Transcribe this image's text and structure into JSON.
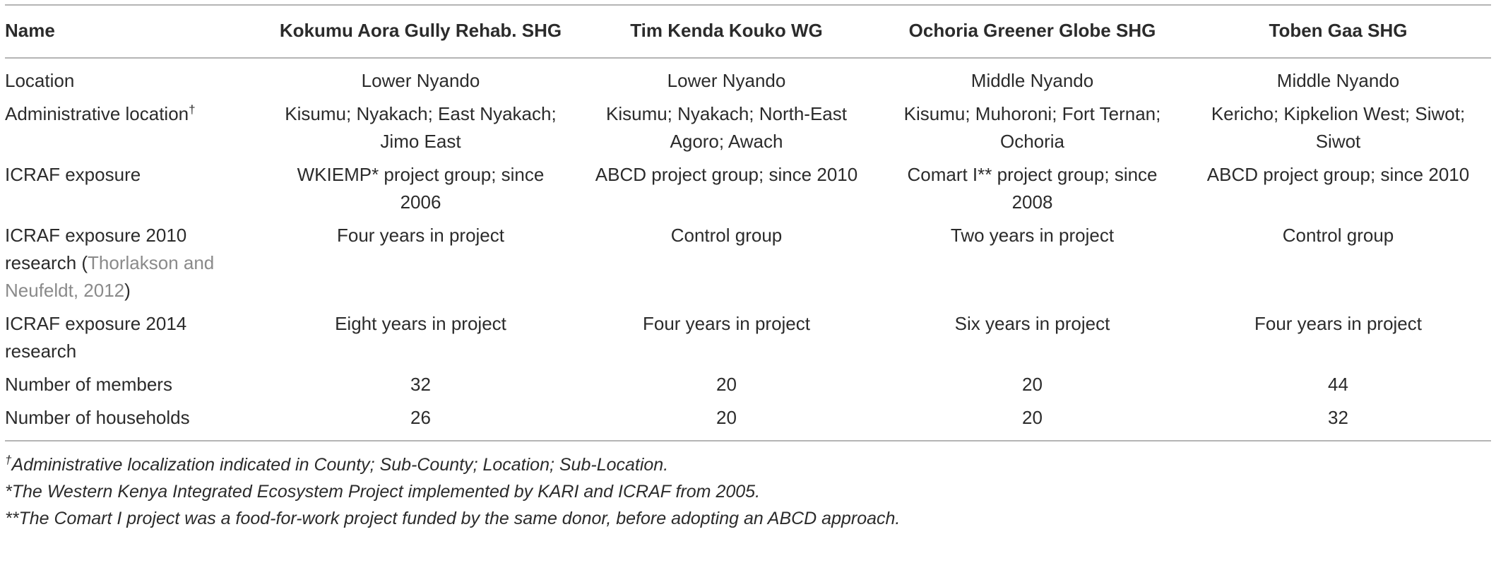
{
  "table": {
    "header": [
      "Name",
      "Kokumu Aora Gully Rehab. SHG",
      "Tim Kenda Kouko WG",
      "Ochoria Greener Globe SHG",
      "Toben Gaa SHG"
    ],
    "rows": [
      {
        "label": "Location",
        "cells": [
          "Lower Nyando",
          "Lower Nyando",
          "Middle Nyando",
          "Middle Nyando"
        ]
      },
      {
        "label": "Administrative location",
        "label_mark": "†",
        "cells": [
          "Kisumu; Nyakach; East Nyakach; Jimo East",
          "Kisumu; Nyakach; North-East Agoro; Awach",
          "Kisumu; Muhoroni; Fort Ternan; Ochoria",
          "Kericho; Kipkelion West; Siwot; Siwot"
        ]
      },
      {
        "label": "ICRAF exposure",
        "cells": [
          "WKIEMP* project group; since 2006",
          "ABCD project group; since 2010",
          "Comart I** project group; since 2008",
          "ABCD project group; since 2010"
        ]
      },
      {
        "label": "ICRAF exposure 2010 research (",
        "citation": "Thorlakson and Neufeldt, 2012",
        "label_end": ")",
        "cells": [
          "Four years in project",
          "Control group",
          "Two years in project",
          "Control group"
        ]
      },
      {
        "label": "ICRAF exposure 2014 research",
        "cells": [
          "Eight years in project",
          "Four years in project",
          "Six years in project",
          "Four years in project"
        ]
      },
      {
        "label": "Number of members",
        "cells": [
          32,
          20,
          20,
          44
        ]
      },
      {
        "label": "Number of households",
        "cells": [
          26,
          20,
          20,
          32
        ]
      }
    ],
    "footnotes": [
      {
        "mark": "†",
        "text": "Administrative localization indicated in County; Sub-County; Location; Sub-Location."
      },
      {
        "text": "*The Western Kenya Integrated Ecosystem Project implemented by KARI and ICRAF from 2005."
      },
      {
        "text": "**The Comart I project was a food-for-work project funded by the same donor, before adopting an ABCD approach."
      }
    ]
  }
}
